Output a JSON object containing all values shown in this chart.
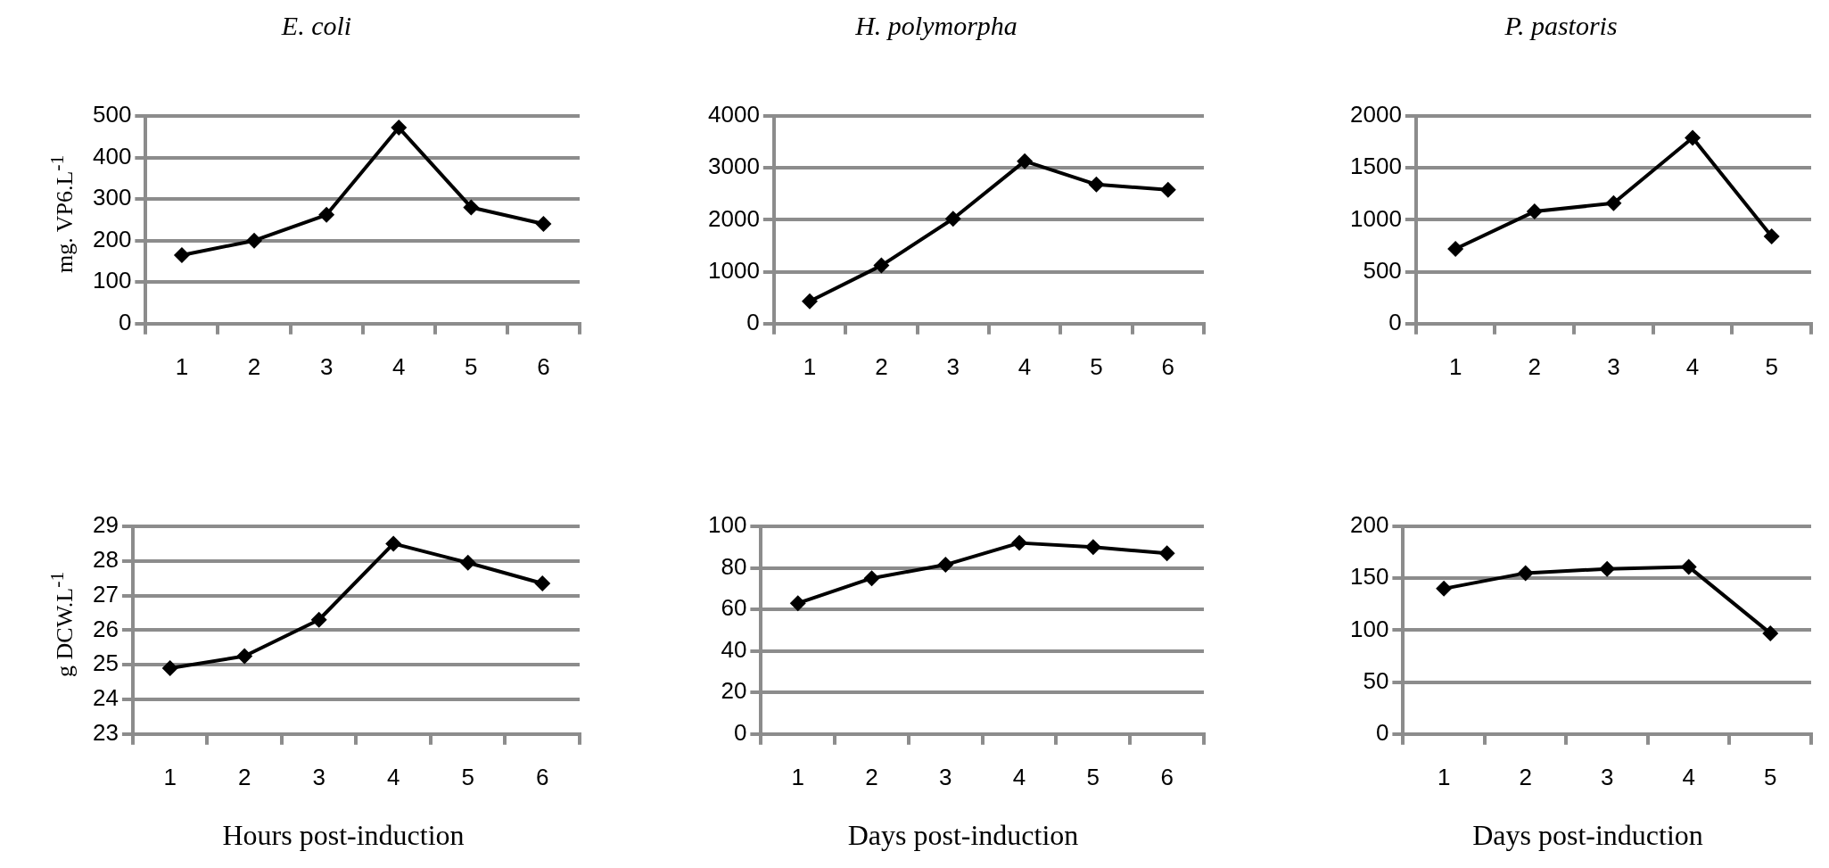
{
  "chart_data": [
    {
      "type": "line",
      "title": "E. coli",
      "ylabel": "mg. VP6.L$^{-1}$",
      "categories": [
        "1",
        "2",
        "3",
        "4",
        "5",
        "6"
      ],
      "series": [
        {
          "color": "#000000",
          "values": [
            165,
            200,
            262,
            472,
            280,
            240
          ]
        }
      ],
      "ylim": [
        0,
        500
      ],
      "yticks": [
        0,
        100,
        200,
        300,
        400,
        500
      ],
      "grid": "y",
      "marker": "diamond"
    },
    {
      "type": "line",
      "title": "H. polymorpha",
      "categories": [
        "1",
        "2",
        "3",
        "4",
        "5",
        "6"
      ],
      "series": [
        {
          "color": "#000000",
          "values": [
            430,
            1120,
            2020,
            3130,
            2680,
            2580
          ]
        }
      ],
      "ylim": [
        0,
        4000
      ],
      "yticks": [
        0,
        1000,
        2000,
        3000,
        4000
      ],
      "grid": "y",
      "marker": "diamond"
    },
    {
      "type": "line",
      "title": "P. pastoris",
      "categories": [
        "1",
        "2",
        "3",
        "4",
        "5"
      ],
      "series": [
        {
          "color": "#000000",
          "values": [
            720,
            1080,
            1160,
            1790,
            840
          ]
        }
      ],
      "ylim": [
        0,
        2000
      ],
      "yticks": [
        0,
        500,
        1000,
        1500,
        2000
      ],
      "grid": "y",
      "marker": "diamond"
    },
    {
      "type": "line",
      "ylabel": "g DCW.L$^{-1}$",
      "xlabel": "Hours post-induction",
      "categories": [
        "1",
        "2",
        "3",
        "4",
        "5",
        "6"
      ],
      "series": [
        {
          "color": "#000000",
          "values": [
            24.9,
            25.25,
            26.3,
            28.5,
            27.95,
            27.35
          ]
        }
      ],
      "ylim": [
        23,
        29
      ],
      "yticks": [
        23,
        24,
        25,
        26,
        27,
        28,
        29
      ],
      "grid": "y",
      "marker": "diamond"
    },
    {
      "type": "line",
      "xlabel": "Days post-induction",
      "categories": [
        "1",
        "2",
        "3",
        "4",
        "5",
        "6"
      ],
      "series": [
        {
          "color": "#000000",
          "values": [
            63,
            75,
            81.5,
            92,
            90,
            87
          ]
        }
      ],
      "ylim": [
        0,
        100
      ],
      "yticks": [
        0,
        20,
        40,
        60,
        80,
        100
      ],
      "grid": "y",
      "marker": "diamond"
    },
    {
      "type": "line",
      "xlabel": "Days post-induction",
      "categories": [
        "1",
        "2",
        "3",
        "4",
        "5"
      ],
      "series": [
        {
          "color": "#000000",
          "values": [
            140,
            155,
            159,
            161,
            97
          ]
        }
      ],
      "ylim": [
        0,
        200
      ],
      "yticks": [
        0,
        50,
        100,
        150,
        200
      ],
      "grid": "y",
      "marker": "diamond"
    }
  ]
}
